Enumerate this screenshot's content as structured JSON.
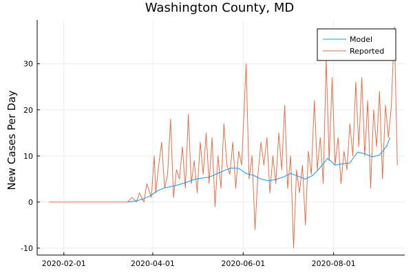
{
  "chart_data": {
    "type": "line",
    "title": "Washington County, MD",
    "xlabel": "",
    "ylabel": "New Cases Per Day",
    "x_ticks": [
      "2020-02-01",
      "2020-04-01",
      "2020-06-01",
      "2020-08-01"
    ],
    "y_ticks": [
      -10,
      0,
      10,
      20,
      30
    ],
    "ylim": [
      -11.5,
      39.5
    ],
    "xlim": [
      "2020-01-14",
      "2020-09-18"
    ],
    "grid": true,
    "legend_position": "top-right",
    "series": [
      {
        "name": "Model",
        "color": "#009af9",
        "points": [
          [
            "2020-03-15",
            0
          ],
          [
            "2020-03-20",
            0.2
          ],
          [
            "2020-03-25",
            0.6
          ],
          [
            "2020-03-30",
            1.3
          ],
          [
            "2020-04-04",
            2.4
          ],
          [
            "2020-04-09",
            3.1
          ],
          [
            "2020-04-14",
            3.4
          ],
          [
            "2020-04-19",
            3.8
          ],
          [
            "2020-04-24",
            4.3
          ],
          [
            "2020-04-29",
            4.9
          ],
          [
            "2020-05-04",
            5.2
          ],
          [
            "2020-05-09",
            5.4
          ],
          [
            "2020-05-14",
            6.1
          ],
          [
            "2020-05-19",
            6.8
          ],
          [
            "2020-05-24",
            7.4
          ],
          [
            "2020-05-29",
            7.3
          ],
          [
            "2020-06-03",
            6.2
          ],
          [
            "2020-06-08",
            5.8
          ],
          [
            "2020-06-13",
            5.0
          ],
          [
            "2020-06-18",
            4.6
          ],
          [
            "2020-06-23",
            4.9
          ],
          [
            "2020-06-28",
            5.4
          ],
          [
            "2020-07-03",
            6.2
          ],
          [
            "2020-07-08",
            5.6
          ],
          [
            "2020-07-13",
            5.0
          ],
          [
            "2020-07-18",
            5.8
          ],
          [
            "2020-07-23",
            7.5
          ],
          [
            "2020-07-28",
            9.5
          ],
          [
            "2020-08-02",
            8.0
          ],
          [
            "2020-08-07",
            8.3
          ],
          [
            "2020-08-12",
            8.5
          ],
          [
            "2020-08-17",
            10.8
          ],
          [
            "2020-08-22",
            10.5
          ],
          [
            "2020-08-27",
            9.8
          ],
          [
            "2020-09-01",
            10.2
          ],
          [
            "2020-09-06",
            12.2
          ],
          [
            "2020-09-08",
            14.0
          ]
        ]
      },
      {
        "name": "Reported",
        "color": "#e26f46",
        "points": [
          [
            "2020-01-22",
            0
          ],
          [
            "2020-03-15",
            0
          ],
          [
            "2020-03-18",
            1
          ],
          [
            "2020-03-21",
            0
          ],
          [
            "2020-03-23",
            2
          ],
          [
            "2020-03-26",
            0
          ],
          [
            "2020-03-28",
            4
          ],
          [
            "2020-03-31",
            1
          ],
          [
            "2020-04-02",
            10
          ],
          [
            "2020-04-03",
            2
          ],
          [
            "2020-04-05",
            8
          ],
          [
            "2020-04-07",
            13
          ],
          [
            "2020-04-09",
            3
          ],
          [
            "2020-04-11",
            6
          ],
          [
            "2020-04-13",
            18
          ],
          [
            "2020-04-15",
            1
          ],
          [
            "2020-04-17",
            7
          ],
          [
            "2020-04-19",
            5
          ],
          [
            "2020-04-21",
            12
          ],
          [
            "2020-04-23",
            3
          ],
          [
            "2020-04-25",
            19
          ],
          [
            "2020-04-27",
            4
          ],
          [
            "2020-04-29",
            9
          ],
          [
            "2020-05-01",
            2
          ],
          [
            "2020-05-03",
            13
          ],
          [
            "2020-05-05",
            6
          ],
          [
            "2020-05-07",
            15
          ],
          [
            "2020-05-09",
            4
          ],
          [
            "2020-05-11",
            14
          ],
          [
            "2020-05-13",
            -1
          ],
          [
            "2020-05-15",
            10
          ],
          [
            "2020-05-17",
            3
          ],
          [
            "2020-05-19",
            17
          ],
          [
            "2020-05-21",
            8
          ],
          [
            "2020-05-23",
            6
          ],
          [
            "2020-05-25",
            13
          ],
          [
            "2020-05-27",
            3
          ],
          [
            "2020-05-29",
            11
          ],
          [
            "2020-05-31",
            8
          ],
          [
            "2020-06-03",
            30
          ],
          [
            "2020-06-05",
            5
          ],
          [
            "2020-06-07",
            10
          ],
          [
            "2020-06-09",
            -6
          ],
          [
            "2020-06-11",
            6
          ],
          [
            "2020-06-13",
            13
          ],
          [
            "2020-06-15",
            8
          ],
          [
            "2020-06-17",
            14
          ],
          [
            "2020-06-19",
            2
          ],
          [
            "2020-06-21",
            10
          ],
          [
            "2020-06-23",
            4
          ],
          [
            "2020-06-25",
            15
          ],
          [
            "2020-06-27",
            7
          ],
          [
            "2020-06-29",
            21
          ],
          [
            "2020-07-01",
            3
          ],
          [
            "2020-07-03",
            10
          ],
          [
            "2020-07-05",
            -10
          ],
          [
            "2020-07-07",
            7
          ],
          [
            "2020-07-09",
            2
          ],
          [
            "2020-07-11",
            8
          ],
          [
            "2020-07-13",
            -5
          ],
          [
            "2020-07-15",
            11
          ],
          [
            "2020-07-17",
            6
          ],
          [
            "2020-07-19",
            22
          ],
          [
            "2020-07-21",
            7
          ],
          [
            "2020-07-23",
            14
          ],
          [
            "2020-07-25",
            4
          ],
          [
            "2020-07-27",
            31
          ],
          [
            "2020-07-29",
            9
          ],
          [
            "2020-07-31",
            27
          ],
          [
            "2020-08-02",
            8
          ],
          [
            "2020-08-04",
            14
          ],
          [
            "2020-08-06",
            4
          ],
          [
            "2020-08-08",
            11
          ],
          [
            "2020-08-10",
            7
          ],
          [
            "2020-08-12",
            17
          ],
          [
            "2020-08-14",
            10
          ],
          [
            "2020-08-16",
            26
          ],
          [
            "2020-08-18",
            12
          ],
          [
            "2020-08-20",
            27
          ],
          [
            "2020-08-22",
            10
          ],
          [
            "2020-08-24",
            22
          ],
          [
            "2020-08-26",
            3
          ],
          [
            "2020-08-28",
            20
          ],
          [
            "2020-08-30",
            12
          ],
          [
            "2020-09-01",
            24
          ],
          [
            "2020-09-03",
            5
          ],
          [
            "2020-09-05",
            21
          ],
          [
            "2020-09-07",
            14
          ],
          [
            "2020-09-09",
            21
          ],
          [
            "2020-09-11",
            38
          ],
          [
            "2020-09-13",
            8
          ]
        ]
      }
    ]
  }
}
